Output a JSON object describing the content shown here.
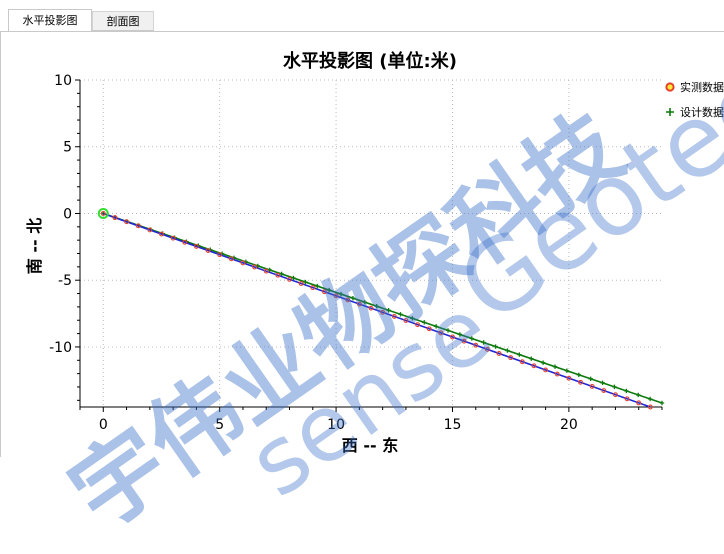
{
  "tabs": [
    {
      "label": "水平投影图",
      "active": true
    },
    {
      "label": "剖面图",
      "active": false
    }
  ],
  "watermark": {
    "cn": "宇伟业物探科技",
    "en1": "sense",
    "en2": "Geotech"
  },
  "colors": {
    "measured_line": "#1f28d6",
    "measured_marker_edge": "#e8412a",
    "design": "#0d7a0d",
    "start_marker": "#33dd33",
    "grid": "#bcbcbc"
  },
  "chart_data": {
    "type": "line",
    "title": "水平投影图 (单位:米)",
    "xlabel": "西 -- 东",
    "ylabel": "南 -- 北",
    "xlim": [
      -1,
      24
    ],
    "ylim": [
      -14.5,
      10
    ],
    "xticks": [
      0,
      5,
      10,
      15,
      20
    ],
    "yticks": [
      10,
      5,
      0,
      -5,
      -10
    ],
    "grid": true,
    "legend_position": "top-right",
    "series": [
      {
        "name": "实测数据",
        "marker": "circle",
        "x": [
          0,
          23.5
        ],
        "y": [
          0,
          -14.5
        ]
      },
      {
        "name": "设计数据",
        "marker": "plus",
        "x": [
          0,
          24
        ],
        "y": [
          0,
          -14.2
        ]
      }
    ],
    "start_point": {
      "x": 0,
      "y": 0
    }
  }
}
